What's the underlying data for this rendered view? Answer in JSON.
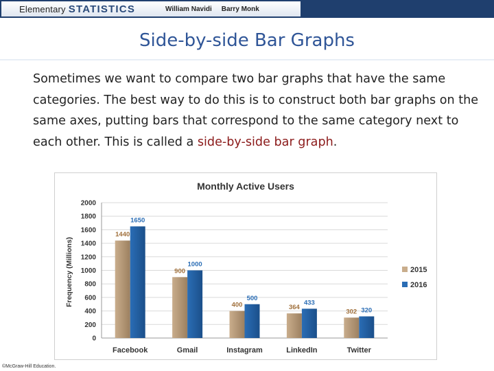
{
  "header": {
    "brand_prefix": "Elementary",
    "brand_main": "STATISTICS",
    "author1": "William Navidi",
    "author2": "Barry Monk"
  },
  "slide": {
    "title": "Side-by-side Bar Graphs",
    "body_before": "Sometimes we want to compare two bar graphs that have the same categories. The best way to do this is to construct both bar graphs on the same axes, putting bars that correspond to the same category next to each other. This is called a ",
    "body_highlight": "side-by-side bar graph",
    "body_after": ".",
    "copyright": "©McGraw-Hill Education."
  },
  "colors": {
    "highlight": "#8b1a1a",
    "title": "#2f5597",
    "series_2015": "#c9ad8c",
    "series_2016": "#2a6db5"
  },
  "chart_data": {
    "type": "bar",
    "title": "Monthly Active Users",
    "ylabel": "Frequency (Millions)",
    "xlabel": "",
    "ylim": [
      0,
      2000
    ],
    "yticks": [
      "0",
      "200",
      "400",
      "600",
      "800",
      "1000",
      "1200",
      "1400",
      "1600",
      "1800",
      "2000"
    ],
    "categories": [
      "Facebook",
      "Gmail",
      "Instagram",
      "LinkedIn",
      "Twitter"
    ],
    "series": [
      {
        "name": "2015",
        "values": [
          1440,
          900,
          400,
          364,
          302
        ]
      },
      {
        "name": "2016",
        "values": [
          1650,
          1000,
          500,
          433,
          320
        ]
      }
    ],
    "legend_position": "right",
    "grid": true
  }
}
